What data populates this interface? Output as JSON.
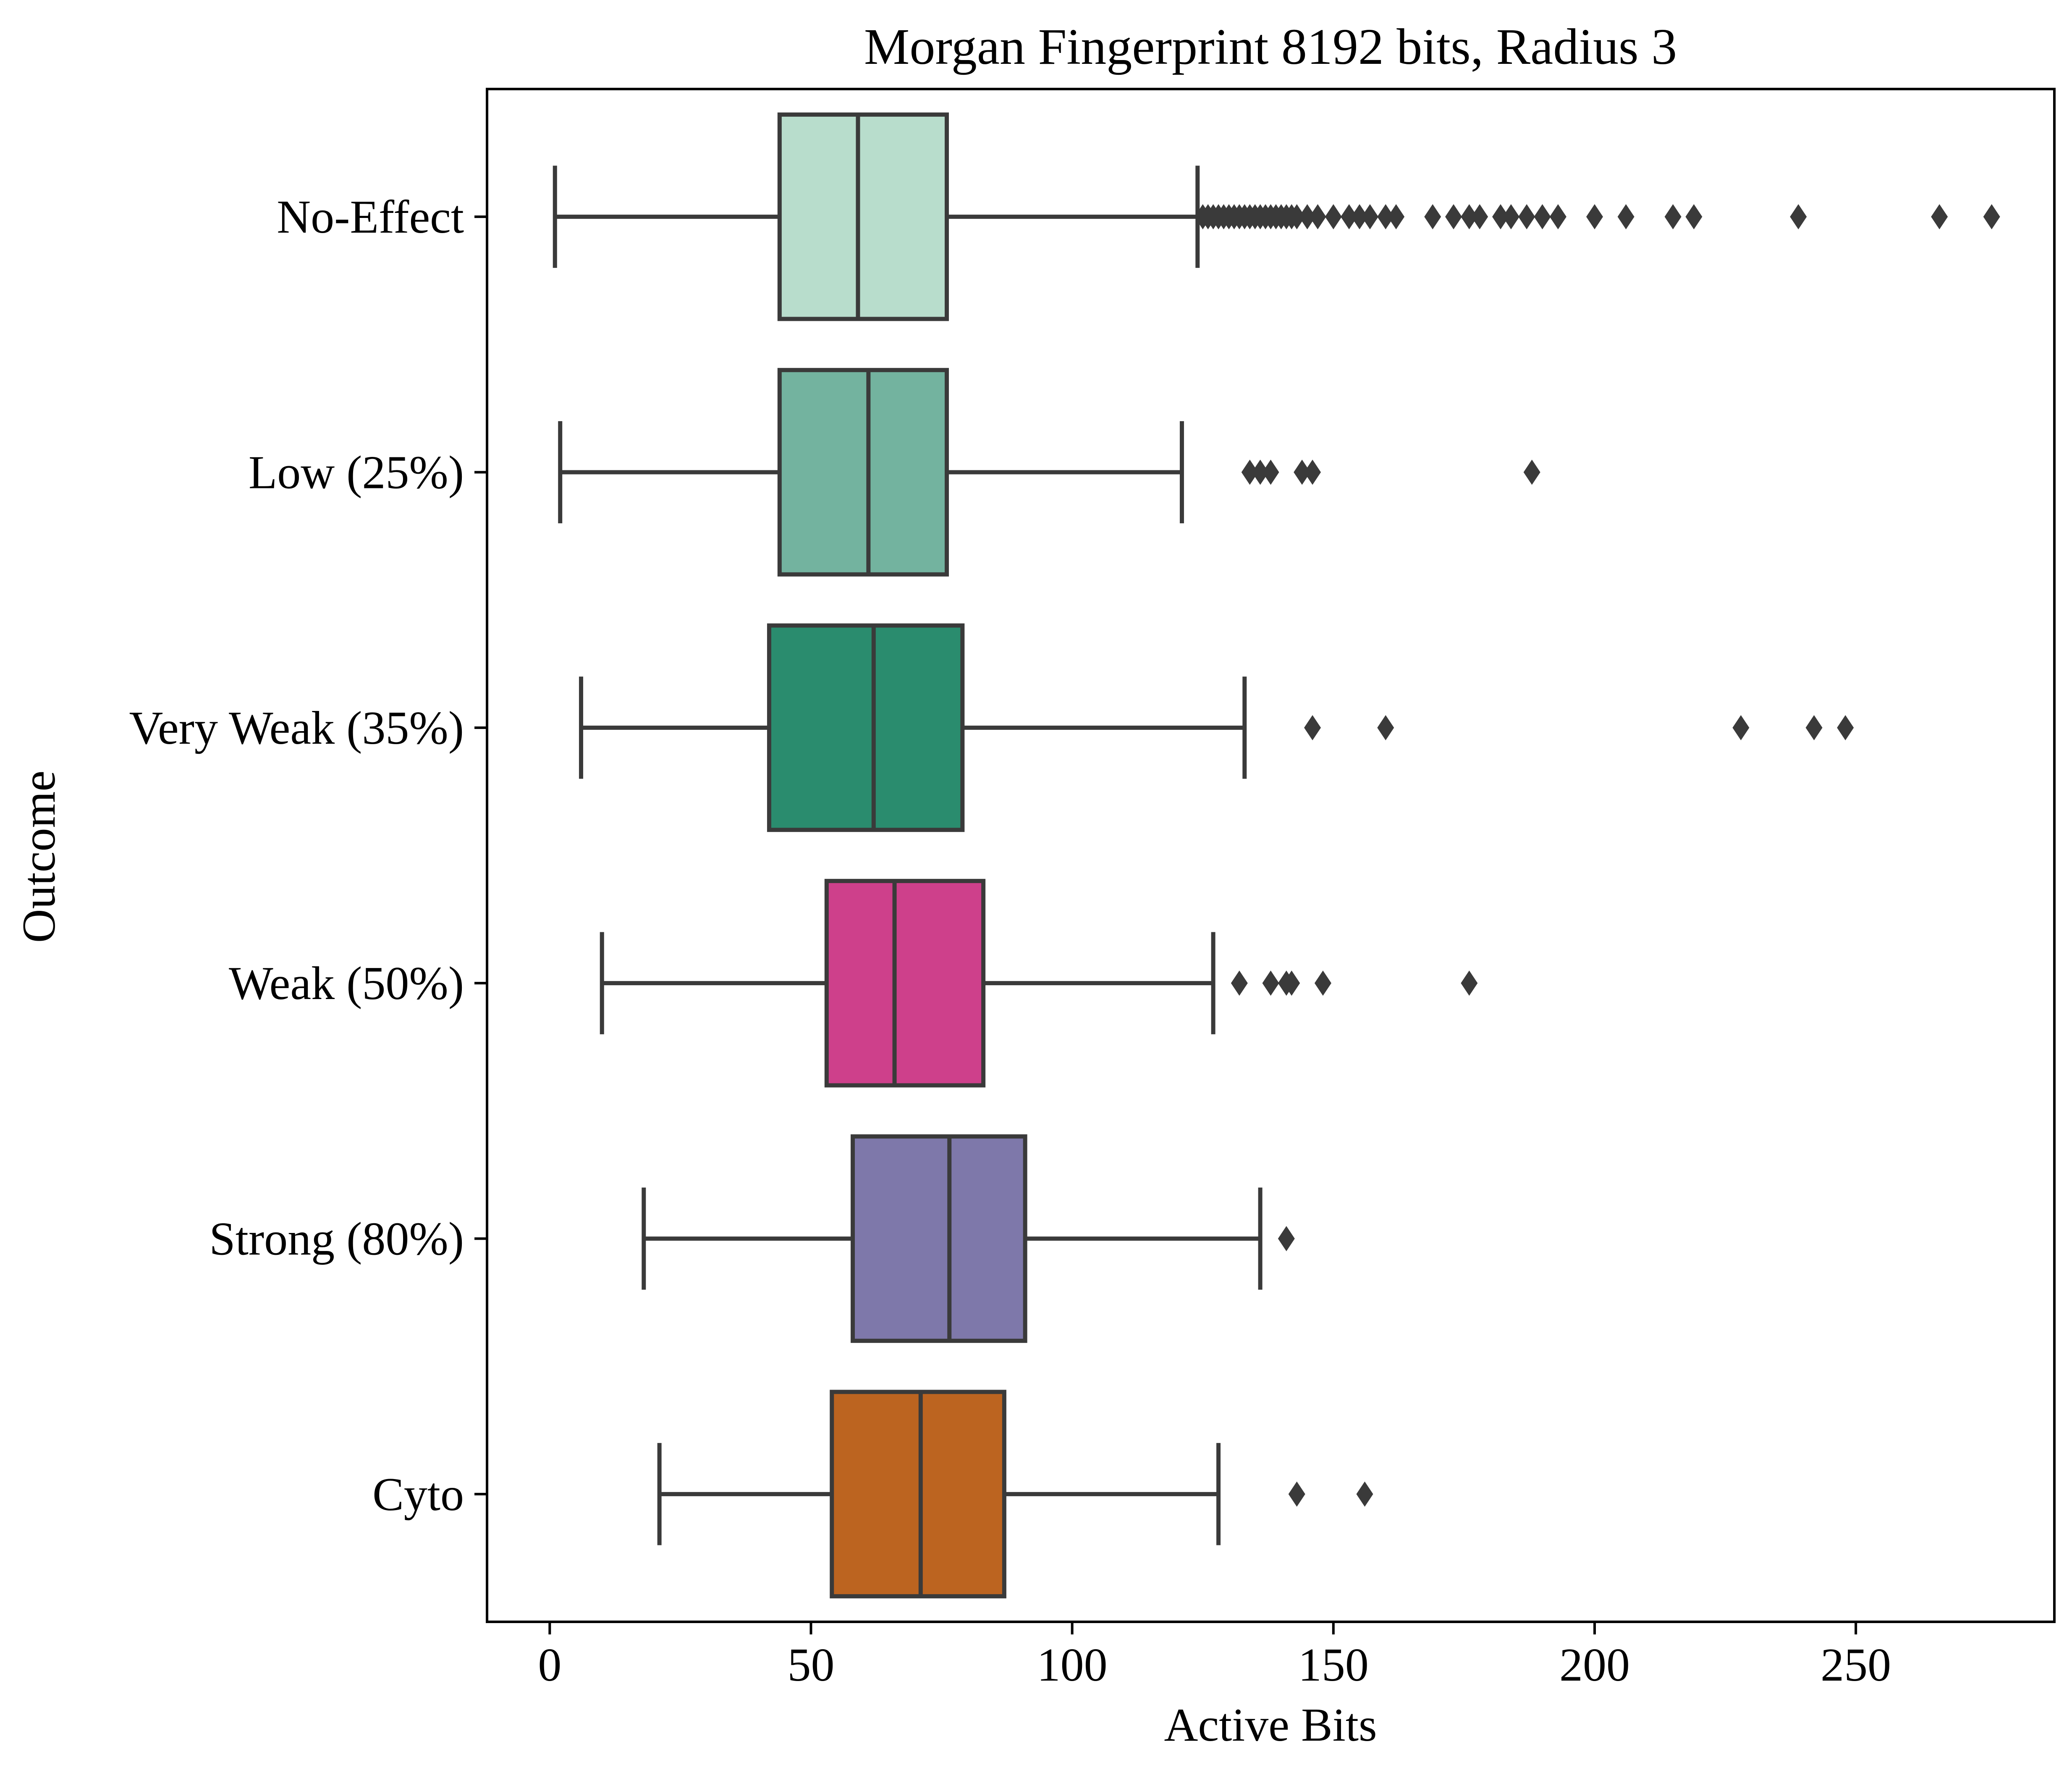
{
  "chart_data": {
    "type": "boxplot",
    "orientation": "horizontal",
    "title": "Morgan Fingerprint 8192 bits, Radius 3",
    "xlabel": "Active Bits",
    "ylabel": "Outcome",
    "xlim": [
      -12,
      288
    ],
    "xticks": [
      0,
      50,
      100,
      150,
      200,
      250
    ],
    "grid": false,
    "legend": "none",
    "categories": [
      "No-Effect",
      "Low (25%)",
      "Very Weak (35%)",
      "Weak (50%)",
      "Strong (80%)",
      "Cyto"
    ],
    "boxes": [
      {
        "label": "No-Effect",
        "color": "#b8ddcc",
        "whisker_low": 1,
        "q1": 44,
        "median": 59,
        "q3": 76,
        "whisker_high": 124,
        "outliers": [
          125,
          126,
          127,
          128,
          129,
          130,
          131,
          132,
          133,
          134,
          135,
          136,
          137,
          138,
          139,
          140,
          141,
          142,
          143,
          145,
          147,
          150,
          153,
          155,
          157,
          160,
          162,
          169,
          173,
          176,
          178,
          182,
          184,
          187,
          190,
          193,
          200,
          206,
          215,
          219,
          239,
          266,
          276
        ]
      },
      {
        "label": "Low (25%)",
        "color": "#73b39f",
        "whisker_low": 2,
        "q1": 44,
        "median": 61,
        "q3": 76,
        "whisker_high": 121,
        "outliers": [
          134,
          136,
          138,
          144,
          146,
          188
        ]
      },
      {
        "label": "Very Weak (35%)",
        "color": "#2a8c6e",
        "whisker_low": 6,
        "q1": 42,
        "median": 62,
        "q3": 79,
        "whisker_high": 133,
        "outliers": [
          146,
          160,
          228,
          242,
          248
        ]
      },
      {
        "label": "Weak (50%)",
        "color": "#ce408b",
        "whisker_low": 10,
        "q1": 53,
        "median": 66,
        "q3": 83,
        "whisker_high": 127,
        "outliers": [
          132,
          138,
          141,
          142,
          148,
          176
        ]
      },
      {
        "label": "Strong (80%)",
        "color": "#7e78aa",
        "whisker_low": 18,
        "q1": 58,
        "median": 76.5,
        "q3": 91,
        "whisker_high": 136,
        "outliers": [
          141
        ]
      },
      {
        "label": "Cyto",
        "color": "#bc6420",
        "whisker_low": 21,
        "q1": 54,
        "median": 71,
        "q3": 87,
        "whisker_high": 128,
        "outliers": [
          143,
          156
        ]
      }
    ],
    "line_color": "#3a3a3a"
  }
}
